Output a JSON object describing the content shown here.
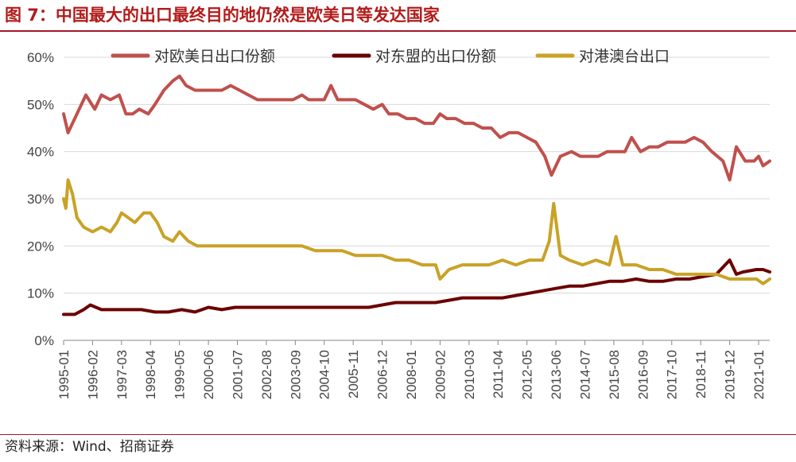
{
  "header": {
    "title": "图 7：中国最大的出口最终目的地仍然是欧美日等发达国家"
  },
  "footer": {
    "source": "资料来源：Wind、招商证券"
  },
  "colors": {
    "accent": "#a3162a",
    "eu_us_jp": "#c0504d",
    "asean": "#6b0000",
    "hk_mo": "#c9a227"
  },
  "chart_data": {
    "type": "line",
    "x_start": "1995-01",
    "x_end": "2021-06",
    "x_ticks": [
      "1995-01",
      "1996-02",
      "1997-03",
      "1998-04",
      "1999-05",
      "2000-06",
      "2001-07",
      "2002-08",
      "2003-09",
      "2004-10",
      "2005-11",
      "2006-12",
      "2008-01",
      "2009-02",
      "2010-03",
      "2011-04",
      "2012-05",
      "2013-06",
      "2014-07",
      "2015-08",
      "2016-09",
      "2017-10",
      "2018-11",
      "2019-12",
      "2021-01"
    ],
    "y_ticks": [
      "0%",
      "10%",
      "20%",
      "30%",
      "40%",
      "50%",
      "60%"
    ],
    "ylim": [
      0,
      60
    ],
    "legend_position": "top",
    "series": [
      {
        "name": "对欧美日出口份额",
        "points": [
          [
            "1995-01",
            48
          ],
          [
            "1995-03",
            44
          ],
          [
            "1995-07",
            48
          ],
          [
            "1995-11",
            52
          ],
          [
            "1996-03",
            49
          ],
          [
            "1996-06",
            52
          ],
          [
            "1996-10",
            51
          ],
          [
            "1997-02",
            52
          ],
          [
            "1997-05",
            48
          ],
          [
            "1997-08",
            48
          ],
          [
            "1997-11",
            49
          ],
          [
            "1998-03",
            48
          ],
          [
            "1998-06",
            50
          ],
          [
            "1998-10",
            53
          ],
          [
            "1999-02",
            55
          ],
          [
            "1999-05",
            56
          ],
          [
            "1999-08",
            54
          ],
          [
            "1999-12",
            53
          ],
          [
            "2000-04",
            53
          ],
          [
            "2000-08",
            53
          ],
          [
            "2000-12",
            53
          ],
          [
            "2001-04",
            54
          ],
          [
            "2001-08",
            53
          ],
          [
            "2001-12",
            52
          ],
          [
            "2002-04",
            51
          ],
          [
            "2002-08",
            51
          ],
          [
            "2002-12",
            51
          ],
          [
            "2003-04",
            51
          ],
          [
            "2003-08",
            51
          ],
          [
            "2003-12",
            52
          ],
          [
            "2004-03",
            51
          ],
          [
            "2004-07",
            51
          ],
          [
            "2004-10",
            51
          ],
          [
            "2005-01",
            54
          ],
          [
            "2005-04",
            51
          ],
          [
            "2005-08",
            51
          ],
          [
            "2005-12",
            51
          ],
          [
            "2006-04",
            50
          ],
          [
            "2006-08",
            49
          ],
          [
            "2006-12",
            50
          ],
          [
            "2007-03",
            48
          ],
          [
            "2007-07",
            48
          ],
          [
            "2007-11",
            47
          ],
          [
            "2008-03",
            47
          ],
          [
            "2008-07",
            46
          ],
          [
            "2008-11",
            46
          ],
          [
            "2009-02",
            48
          ],
          [
            "2009-05",
            47
          ],
          [
            "2009-09",
            47
          ],
          [
            "2010-01",
            46
          ],
          [
            "2010-05",
            46
          ],
          [
            "2010-09",
            45
          ],
          [
            "2011-01",
            45
          ],
          [
            "2011-05",
            43
          ],
          [
            "2011-09",
            44
          ],
          [
            "2012-01",
            44
          ],
          [
            "2012-05",
            43
          ],
          [
            "2012-09",
            42
          ],
          [
            "2013-01",
            39
          ],
          [
            "2013-04",
            35
          ],
          [
            "2013-08",
            39
          ],
          [
            "2014-01",
            40
          ],
          [
            "2014-05",
            39
          ],
          [
            "2014-09",
            39
          ],
          [
            "2015-01",
            39
          ],
          [
            "2015-05",
            40
          ],
          [
            "2015-09",
            40
          ],
          [
            "2016-01",
            40
          ],
          [
            "2016-04",
            43
          ],
          [
            "2016-08",
            40
          ],
          [
            "2016-12",
            41
          ],
          [
            "2017-04",
            41
          ],
          [
            "2017-08",
            42
          ],
          [
            "2017-12",
            42
          ],
          [
            "2018-04",
            42
          ],
          [
            "2018-08",
            43
          ],
          [
            "2018-12",
            42
          ],
          [
            "2019-04",
            40
          ],
          [
            "2019-09",
            38
          ],
          [
            "2019-12",
            34
          ],
          [
            "2020-03",
            41
          ],
          [
            "2020-07",
            38
          ],
          [
            "2020-11",
            38
          ],
          [
            "2021-01",
            39
          ],
          [
            "2021-03",
            37
          ],
          [
            "2021-06",
            38
          ]
        ]
      },
      {
        "name": "对东盟的出口份额",
        "points": [
          [
            "1995-01",
            5.5
          ],
          [
            "1995-06",
            5.5
          ],
          [
            "1995-10",
            6.5
          ],
          [
            "1996-01",
            7.5
          ],
          [
            "1996-06",
            6.5
          ],
          [
            "1996-12",
            6.5
          ],
          [
            "1997-06",
            6.5
          ],
          [
            "1997-12",
            6.5
          ],
          [
            "1998-06",
            6
          ],
          [
            "1998-12",
            6
          ],
          [
            "1999-06",
            6.5
          ],
          [
            "1999-12",
            6
          ],
          [
            "2000-06",
            7
          ],
          [
            "2000-12",
            6.5
          ],
          [
            "2001-06",
            7
          ],
          [
            "2001-12",
            7
          ],
          [
            "2002-06",
            7
          ],
          [
            "2002-12",
            7
          ],
          [
            "2003-06",
            7
          ],
          [
            "2003-12",
            7
          ],
          [
            "2004-06",
            7
          ],
          [
            "2004-12",
            7
          ],
          [
            "2005-06",
            7
          ],
          [
            "2005-12",
            7
          ],
          [
            "2006-06",
            7
          ],
          [
            "2006-12",
            7.5
          ],
          [
            "2007-06",
            8
          ],
          [
            "2007-12",
            8
          ],
          [
            "2008-06",
            8
          ],
          [
            "2008-12",
            8
          ],
          [
            "2009-06",
            8.5
          ],
          [
            "2009-12",
            9
          ],
          [
            "2010-06",
            9
          ],
          [
            "2010-12",
            9
          ],
          [
            "2011-06",
            9
          ],
          [
            "2011-12",
            9.5
          ],
          [
            "2012-06",
            10
          ],
          [
            "2012-12",
            10.5
          ],
          [
            "2013-06",
            11
          ],
          [
            "2013-12",
            11.5
          ],
          [
            "2014-06",
            11.5
          ],
          [
            "2014-12",
            12
          ],
          [
            "2015-06",
            12.5
          ],
          [
            "2015-12",
            12.5
          ],
          [
            "2016-06",
            13
          ],
          [
            "2016-12",
            12.5
          ],
          [
            "2017-06",
            12.5
          ],
          [
            "2017-12",
            13
          ],
          [
            "2018-06",
            13
          ],
          [
            "2018-12",
            13.5
          ],
          [
            "2019-06",
            14
          ],
          [
            "2019-12",
            17
          ],
          [
            "2020-03",
            14
          ],
          [
            "2020-06",
            14.5
          ],
          [
            "2020-12",
            15
          ],
          [
            "2021-03",
            15
          ],
          [
            "2021-06",
            14.5
          ]
        ]
      },
      {
        "name": "对港澳台出口",
        "points": [
          [
            "1995-01",
            30
          ],
          [
            "1995-02",
            28
          ],
          [
            "1995-03",
            34
          ],
          [
            "1995-05",
            31
          ],
          [
            "1995-07",
            26
          ],
          [
            "1995-10",
            24
          ],
          [
            "1996-02",
            23
          ],
          [
            "1996-06",
            24
          ],
          [
            "1996-10",
            23
          ],
          [
            "1997-01",
            25
          ],
          [
            "1997-03",
            27
          ],
          [
            "1997-06",
            26
          ],
          [
            "1997-09",
            25
          ],
          [
            "1998-01",
            27
          ],
          [
            "1998-04",
            27
          ],
          [
            "1998-07",
            25
          ],
          [
            "1998-10",
            22
          ],
          [
            "1999-02",
            21
          ],
          [
            "1999-05",
            23
          ],
          [
            "1999-09",
            21
          ],
          [
            "2000-01",
            20
          ],
          [
            "2000-06",
            20
          ],
          [
            "2000-12",
            20
          ],
          [
            "2001-06",
            20
          ],
          [
            "2001-12",
            20
          ],
          [
            "2002-06",
            20
          ],
          [
            "2002-12",
            20
          ],
          [
            "2003-06",
            20
          ],
          [
            "2003-12",
            20
          ],
          [
            "2004-06",
            19
          ],
          [
            "2004-12",
            19
          ],
          [
            "2005-06",
            19
          ],
          [
            "2005-12",
            18
          ],
          [
            "2006-06",
            18
          ],
          [
            "2006-12",
            18
          ],
          [
            "2007-06",
            17
          ],
          [
            "2007-12",
            17
          ],
          [
            "2008-06",
            16
          ],
          [
            "2008-12",
            16
          ],
          [
            "2009-02",
            13
          ],
          [
            "2009-06",
            15
          ],
          [
            "2009-12",
            16
          ],
          [
            "2010-06",
            16
          ],
          [
            "2010-12",
            16
          ],
          [
            "2011-06",
            17
          ],
          [
            "2011-12",
            16
          ],
          [
            "2012-06",
            17
          ],
          [
            "2012-12",
            17
          ],
          [
            "2013-03",
            21
          ],
          [
            "2013-05",
            29
          ],
          [
            "2013-08",
            18
          ],
          [
            "2013-12",
            17
          ],
          [
            "2014-06",
            16
          ],
          [
            "2014-12",
            17
          ],
          [
            "2015-06",
            16
          ],
          [
            "2015-09",
            22
          ],
          [
            "2015-12",
            16
          ],
          [
            "2016-06",
            16
          ],
          [
            "2016-12",
            15
          ],
          [
            "2017-06",
            15
          ],
          [
            "2017-12",
            14
          ],
          [
            "2018-06",
            14
          ],
          [
            "2018-12",
            14
          ],
          [
            "2019-06",
            14
          ],
          [
            "2019-12",
            13
          ],
          [
            "2020-06",
            13
          ],
          [
            "2020-12",
            13
          ],
          [
            "2021-03",
            12
          ],
          [
            "2021-06",
            13
          ]
        ]
      }
    ]
  }
}
